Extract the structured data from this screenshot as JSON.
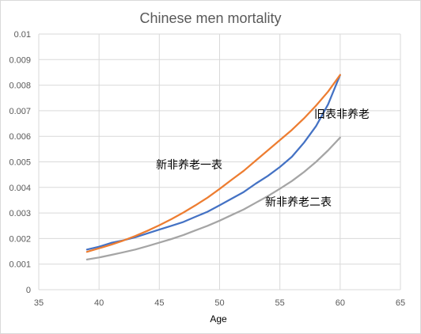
{
  "chart_data": {
    "type": "line",
    "title": "Chinese men mortality",
    "xlabel": "Age",
    "ylabel": "",
    "xlim": [
      35,
      65
    ],
    "ylim": [
      0,
      0.01
    ],
    "xticks": [
      "35",
      "40",
      "45",
      "50",
      "55",
      "60",
      "65"
    ],
    "yticks": [
      "0",
      "0.001",
      "0.002",
      "0.003",
      "0.004",
      "0.005",
      "0.006",
      "0.007",
      "0.008",
      "0.009",
      "0.01"
    ],
    "grid": true,
    "legend": "none",
    "series": [
      {
        "name": "旧表非养老",
        "color": "#4472C4",
        "x": [
          39,
          40,
          41,
          42,
          43,
          44,
          45,
          46,
          47,
          48,
          49,
          50,
          51,
          52,
          53,
          54,
          55,
          56,
          57,
          58,
          59,
          60
        ],
        "y": [
          0.00157,
          0.00168,
          0.00183,
          0.00193,
          0.00205,
          0.0022,
          0.00235,
          0.0025,
          0.00265,
          0.00285,
          0.00305,
          0.0033,
          0.00356,
          0.00382,
          0.00415,
          0.00445,
          0.0048,
          0.0052,
          0.00575,
          0.0064,
          0.00725,
          0.0084
        ]
      },
      {
        "name": "新非养老一表",
        "color": "#ED7D31",
        "x": [
          39,
          40,
          41,
          42,
          43,
          44,
          45,
          46,
          47,
          48,
          49,
          50,
          51,
          52,
          53,
          54,
          55,
          56,
          57,
          58,
          59,
          60
        ],
        "y": [
          0.00148,
          0.00162,
          0.00176,
          0.00192,
          0.0021,
          0.0023,
          0.00252,
          0.00276,
          0.00302,
          0.0033,
          0.0036,
          0.00394,
          0.0043,
          0.00465,
          0.00505,
          0.00545,
          0.00585,
          0.00625,
          0.0067,
          0.0072,
          0.00775,
          0.0084
        ]
      },
      {
        "name": "新非养老二表",
        "color": "#A5A5A5",
        "x": [
          39,
          40,
          41,
          42,
          43,
          44,
          45,
          46,
          47,
          48,
          49,
          50,
          51,
          52,
          53,
          54,
          55,
          56,
          57,
          58,
          59,
          60
        ],
        "y": [
          0.00118,
          0.00126,
          0.00136,
          0.00146,
          0.00157,
          0.0017,
          0.00184,
          0.00198,
          0.00214,
          0.00232,
          0.0025,
          0.0027,
          0.00292,
          0.00314,
          0.0034,
          0.00366,
          0.00395,
          0.00425,
          0.0046,
          0.005,
          0.00545,
          0.00595
        ]
      }
    ],
    "annotations": {
      "old": "旧表非养老",
      "new1": "新非养老一表",
      "new2": "新非养老二表"
    }
  }
}
